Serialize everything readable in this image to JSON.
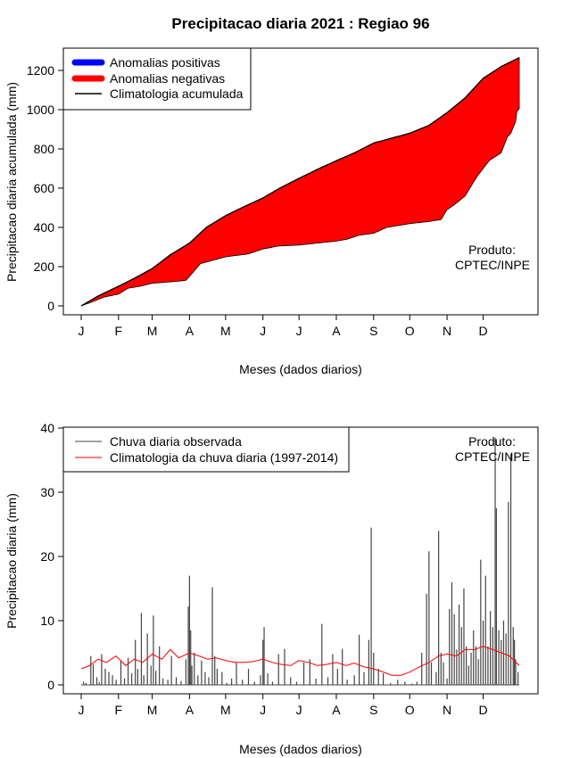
{
  "figure": {
    "title": "Precipitacao diaria 2021 : Regiao 96",
    "credit": [
      "Produto:",
      "CPTEC/INPE"
    ]
  },
  "colors": {
    "anomaly_positive": "#0000ff",
    "anomaly_negative": "#ff0000",
    "climatology_cumulative": "#000000",
    "observed_bars": "#444444",
    "climatology_daily": "#ff0000"
  },
  "chart_data": [
    {
      "type": "area",
      "xlabel": "Meses (dados diarios)",
      "ylabel": "Precipitacao diaria acumulada (mm)",
      "ylim": [
        0,
        1300
      ],
      "yticks": [
        0,
        200,
        400,
        600,
        800,
        1000,
        1200
      ],
      "xlim": [
        1,
        365
      ],
      "month_ticks": {
        "labels": [
          "J",
          "F",
          "M",
          "A",
          "M",
          "J",
          "J",
          "A",
          "S",
          "O",
          "N",
          "D"
        ],
        "days": [
          1,
          32,
          60,
          91,
          121,
          152,
          182,
          213,
          244,
          274,
          305,
          335
        ]
      },
      "legend": {
        "position": "top-left",
        "entries": [
          "Anomalias positivas",
          "Anomalias negativas",
          "Climatologia acumulada"
        ]
      },
      "series": [
        {
          "name": "Climatologia acumulada",
          "days": [
            1,
            15,
            32,
            45,
            60,
            75,
            91,
            105,
            121,
            136,
            152,
            166,
            182,
            197,
            213,
            228,
            244,
            259,
            274,
            290,
            305,
            320,
            335,
            350,
            365
          ],
          "values": [
            0,
            50,
            100,
            140,
            190,
            260,
            320,
            400,
            460,
            505,
            550,
            600,
            650,
            695,
            740,
            780,
            830,
            855,
            880,
            920,
            985,
            1060,
            1160,
            1220,
            1265
          ]
        },
        {
          "name": "Precipitacao observada acumulada",
          "days": [
            1,
            10,
            20,
            32,
            40,
            50,
            60,
            70,
            80,
            88,
            91,
            100,
            121,
            140,
            152,
            165,
            182,
            197,
            213,
            222,
            232,
            244,
            255,
            275,
            290,
            300,
            305,
            312,
            320,
            330,
            340,
            350,
            355,
            358,
            362,
            363,
            365
          ],
          "values": [
            0,
            20,
            45,
            60,
            90,
            100,
            115,
            120,
            125,
            130,
            150,
            215,
            250,
            265,
            290,
            305,
            310,
            320,
            330,
            340,
            360,
            370,
            400,
            420,
            430,
            440,
            490,
            520,
            560,
            660,
            740,
            780,
            860,
            880,
            940,
            990,
            1005
          ]
        }
      ]
    },
    {
      "type": "bar",
      "xlabel": "Meses (dados diarios)",
      "ylabel": "Precipitacao diaria (mm)",
      "ylim": [
        0,
        40
      ],
      "yticks": [
        0,
        10,
        20,
        30,
        40
      ],
      "xlim": [
        1,
        365
      ],
      "month_ticks": {
        "labels": [
          "J",
          "F",
          "M",
          "A",
          "M",
          "J",
          "J",
          "A",
          "S",
          "O",
          "N",
          "D"
        ],
        "days": [
          1,
          32,
          60,
          91,
          121,
          152,
          182,
          213,
          244,
          274,
          305,
          335
        ]
      },
      "legend": {
        "position": "top-left",
        "entries": [
          "Chuva diaria observada",
          "Climatologia da chuva diaria (1997-2014)"
        ]
      },
      "series": [
        {
          "name": "Chuva diaria observada",
          "days": [
            3,
            5,
            9,
            11,
            14,
            16,
            18,
            21,
            24,
            27,
            30,
            34,
            37,
            40,
            43,
            46,
            48,
            51,
            53,
            56,
            59,
            61,
            63,
            66,
            69,
            73,
            76,
            80,
            84,
            88,
            90,
            91,
            92,
            93,
            95,
            98,
            101,
            104,
            107,
            110,
            112,
            114,
            118,
            122,
            126,
            130,
            135,
            140,
            145,
            150,
            152,
            153,
            156,
            160,
            165,
            170,
            175,
            180,
            186,
            191,
            196,
            201,
            206,
            210,
            214,
            218,
            222,
            228,
            232,
            236,
            240,
            242,
            244,
            248,
            252,
            258,
            264,
            270,
            276,
            280,
            284,
            288,
            290,
            292,
            296,
            298,
            300,
            302,
            305,
            307,
            309,
            311,
            313,
            315,
            317,
            319,
            321,
            323,
            325,
            327,
            329,
            331,
            333,
            335,
            337,
            339,
            341,
            343,
            345,
            346,
            348,
            350,
            352,
            354,
            356,
            358,
            360,
            361,
            362,
            364
          ],
          "values": [
            0.5,
            0.3,
            4.5,
            3.2,
            1.2,
            0.4,
            4.8,
            2.5,
            2.0,
            1.5,
            0.8,
            3.8,
            1.0,
            4.2,
            1.8,
            7.0,
            2.5,
            11.2,
            1.5,
            8.0,
            3.0,
            10.8,
            2.2,
            6.0,
            1.0,
            0.8,
            4.5,
            1.2,
            0.6,
            4.0,
            12.2,
            17.0,
            8.5,
            3.0,
            5.0,
            1.5,
            3.8,
            2.0,
            1.2,
            15.2,
            4.5,
            2.5,
            2.0,
            0.3,
            1.0,
            3.5,
            0.8,
            2.5,
            0.5,
            1.5,
            7.0,
            9.0,
            1.8,
            0.5,
            4.8,
            5.6,
            1.2,
            0.5,
            3.5,
            4.0,
            1.0,
            9.5,
            1.2,
            4.8,
            2.5,
            5.6,
            0.8,
            1.5,
            7.8,
            2.0,
            7.0,
            24.5,
            5.0,
            2.5,
            1.8,
            0.3,
            0.8,
            0.5,
            0.2,
            0.5,
            5.0,
            14.2,
            20.8,
            3.5,
            2.0,
            24.0,
            5.0,
            3.5,
            1.0,
            11.8,
            16.0,
            11.0,
            5.5,
            12.5,
            9.0,
            15.0,
            6.0,
            3.0,
            5.0,
            8.5,
            6.0,
            4.0,
            19.5,
            10.0,
            17.0,
            6.0,
            11.5,
            9.0,
            38.5,
            27.5,
            8.5,
            7.0,
            10.0,
            8.0,
            28.5,
            36.0,
            9.0,
            7.0,
            4.0,
            2.0
          ]
        },
        {
          "name": "Climatologia da chuva diaria (1997-2014)",
          "days": [
            1,
            8,
            15,
            22,
            30,
            38,
            45,
            52,
            60,
            68,
            75,
            82,
            91,
            99,
            106,
            113,
            121,
            129,
            136,
            143,
            152,
            160,
            167,
            175,
            182,
            190,
            197,
            205,
            213,
            221,
            228,
            236,
            244,
            252,
            259,
            267,
            274,
            282,
            290,
            298,
            305,
            313,
            320,
            328,
            335,
            343,
            350,
            357,
            365
          ],
          "values": [
            2.5,
            3.0,
            4.0,
            3.5,
            4.5,
            3.0,
            4.0,
            3.5,
            4.8,
            4.0,
            5.5,
            4.2,
            5.0,
            4.5,
            4.0,
            4.2,
            3.8,
            3.5,
            3.5,
            3.6,
            4.0,
            3.5,
            3.2,
            3.0,
            3.8,
            3.5,
            3.0,
            3.2,
            3.5,
            3.0,
            3.4,
            2.8,
            2.5,
            2.0,
            1.5,
            1.5,
            2.0,
            2.8,
            3.5,
            4.5,
            4.8,
            4.5,
            5.5,
            5.5,
            6.0,
            5.5,
            5.0,
            4.5,
            3.0
          ]
        }
      ]
    }
  ]
}
